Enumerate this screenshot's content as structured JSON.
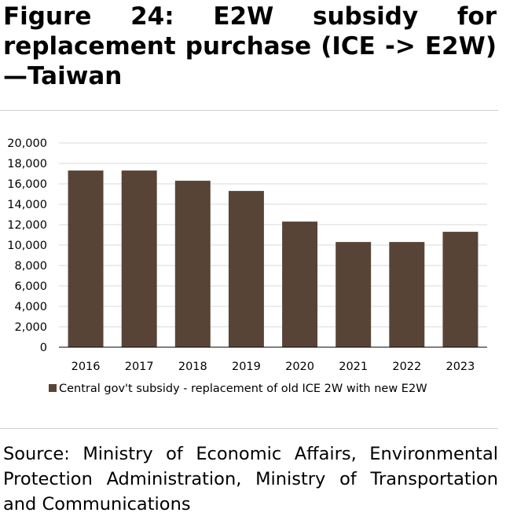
{
  "header": {
    "title": "Figure 24: E2W subsidy for replacement purchase (ICE -> E2W)—Taiwan"
  },
  "footer": {
    "source": "Source: Ministry of Economic Affairs, Environmental Protection Administration, Ministry of Transportation and Communications"
  },
  "colors": {
    "bar": "#584437",
    "gridline": "#d9d9d9",
    "axis": "#000000"
  },
  "chart_data": {
    "type": "bar",
    "title": "",
    "xlabel": "",
    "ylabel": "",
    "categories": [
      "2016",
      "2017",
      "2018",
      "2019",
      "2020",
      "2021",
      "2022",
      "2023"
    ],
    "series": [
      {
        "name": "Central gov't subsidy - replacement of old ICE 2W with new E2W",
        "values": [
          17300,
          17300,
          16300,
          15300,
          12300,
          10300,
          10300,
          11300
        ]
      }
    ],
    "ylim": [
      0,
      20000
    ],
    "yticks": [
      "0",
      "2,000",
      "4,000",
      "6,000",
      "8,000",
      "10,000",
      "12,000",
      "14,000",
      "16,000",
      "18,000",
      "20,000"
    ],
    "grid": true,
    "legend": "bottom"
  }
}
